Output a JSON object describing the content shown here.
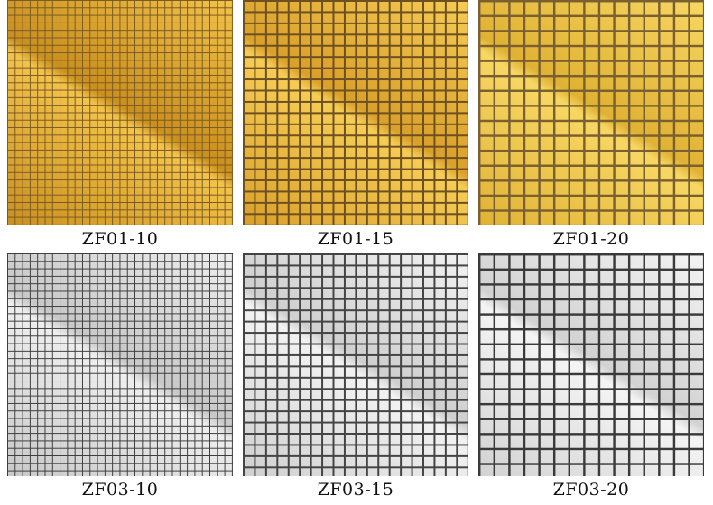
{
  "tiles": [
    {
      "label": "ZF01-10",
      "color_light": "#f2c24a",
      "color_dark": "#c98f1f",
      "grout": "#7a5a22",
      "pitch": 10
    },
    {
      "label": "ZF01-15",
      "color_light": "#f5cc55",
      "color_dark": "#d9a02a",
      "grout": "#6e5020",
      "pitch": 15
    },
    {
      "label": "ZF01-20",
      "color_light": "#f7d763",
      "color_dark": "#e0b233",
      "grout": "#7a6030",
      "pitch": 20
    },
    {
      "label": "ZF03-10",
      "color_light": "#eeeeee",
      "color_dark": "#c8c8c8",
      "grout": "#3c3c3c",
      "pitch": 10
    },
    {
      "label": "ZF03-15",
      "color_light": "#f2f2f2",
      "color_dark": "#cfcfcf",
      "grout": "#444444",
      "pitch": 15
    },
    {
      "label": "ZF03-20",
      "color_light": "#f4f4f4",
      "color_dark": "#d2d2d2",
      "grout": "#3a3a3a",
      "pitch": 20
    }
  ]
}
